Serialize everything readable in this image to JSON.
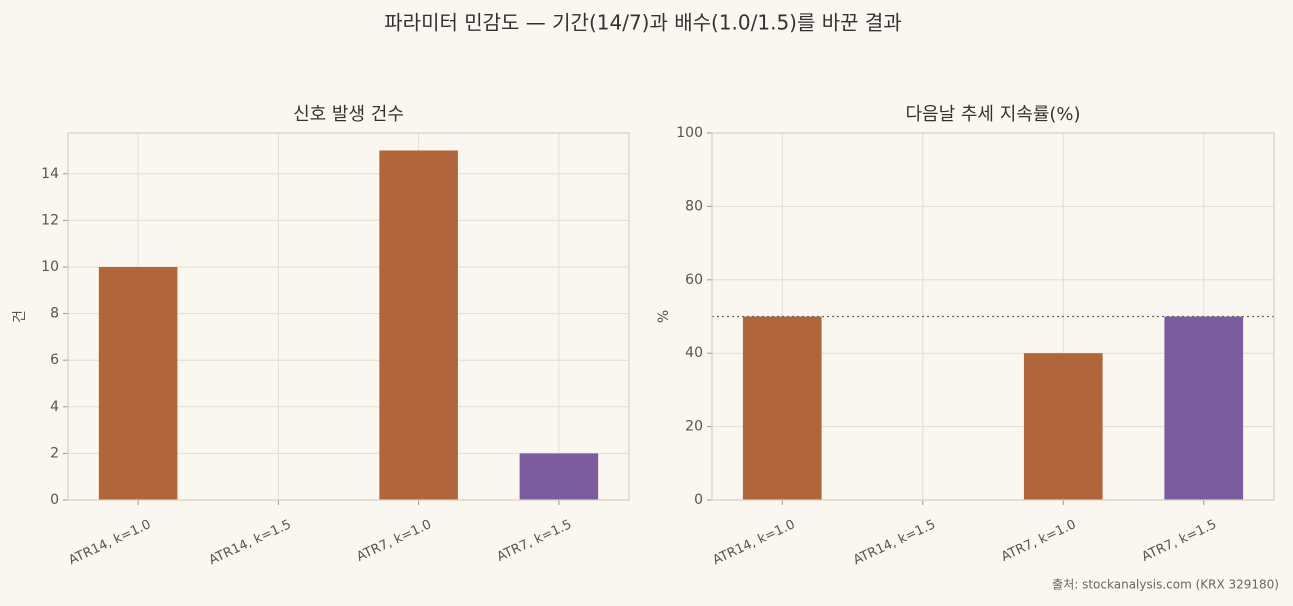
{
  "title": "파라미터 민감도 — 기간(14/7)과 배수(1.0/1.5)를 바꾼 결과",
  "source": "출처: stockanalysis.com (KRX 329180)",
  "chart_data": [
    {
      "type": "bar",
      "title": "신호 발생 건수",
      "ylabel": "건",
      "categories": [
        "ATR14, k=1.0",
        "ATR14, k=1.5",
        "ATR7, k=1.0",
        "ATR7, k=1.5"
      ],
      "values": [
        10,
        0,
        15,
        2
      ],
      "colors": [
        "#b0653a",
        "#b0653a",
        "#b0653a",
        "#7b5c9e"
      ],
      "ylim": [
        0,
        15.75
      ],
      "yticks": [
        0,
        2,
        4,
        6,
        8,
        10,
        12,
        14
      ],
      "grid": true
    },
    {
      "type": "bar",
      "title": "다음날 추세 지속률(%)",
      "ylabel": "%",
      "categories": [
        "ATR14, k=1.0",
        "ATR14, k=1.5",
        "ATR7, k=1.0",
        "ATR7, k=1.5"
      ],
      "values": [
        50,
        null,
        40,
        50
      ],
      "colors": [
        "#b0653a",
        "#b0653a",
        "#b0653a",
        "#7b5c9e"
      ],
      "reference_line": 50,
      "ylim": [
        0,
        100
      ],
      "yticks": [
        0,
        20,
        40,
        60,
        80,
        100
      ],
      "grid": true
    }
  ]
}
